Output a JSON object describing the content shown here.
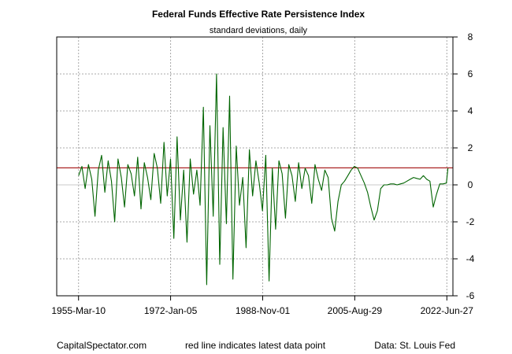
{
  "chart_data": {
    "type": "line",
    "title": "Federal Funds Effective Rate Persistence Index",
    "subtitle": "standard deviations, daily",
    "x_tick_labels": [
      "1955-Mar-10",
      "1972-Jan-05",
      "1988-Nov-01",
      "2005-Aug-29",
      "2022-Jun-27"
    ],
    "x_tick_years": [
      1955.19,
      1972.01,
      1988.84,
      2005.66,
      2022.49
    ],
    "xlim": [
      1951.2,
      2023.6
    ],
    "y_ticks": [
      -6,
      -4,
      -2,
      0,
      2,
      4,
      6,
      8
    ],
    "ylim": [
      -6,
      8
    ],
    "y_axis_side": "right",
    "grid": true,
    "reference_lines": [
      {
        "value": 0,
        "color": "#c8c8c8"
      },
      {
        "value": 0.92,
        "color": "#aa2222"
      }
    ],
    "series": [
      {
        "color": "#006400",
        "x": [
          1955.2,
          1955.8,
          1956.4,
          1957.0,
          1957.6,
          1958.2,
          1958.8,
          1959.4,
          1960.0,
          1960.6,
          1961.2,
          1961.8,
          1962.4,
          1963.0,
          1963.6,
          1964.2,
          1964.8,
          1965.4,
          1966.0,
          1966.6,
          1967.2,
          1967.8,
          1968.4,
          1969.0,
          1969.6,
          1970.2,
          1970.8,
          1971.4,
          1972.0,
          1972.6,
          1973.2,
          1973.8,
          1974.4,
          1975.0,
          1975.6,
          1976.2,
          1976.8,
          1977.4,
          1978.0,
          1978.6,
          1979.2,
          1979.8,
          1980.4,
          1981.0,
          1981.6,
          1982.2,
          1982.8,
          1983.4,
          1984.0,
          1984.6,
          1985.2,
          1985.8,
          1986.4,
          1987.0,
          1987.6,
          1988.2,
          1988.8,
          1989.4,
          1990.0,
          1990.6,
          1991.2,
          1991.8,
          1992.4,
          1993.0,
          1993.6,
          1994.2,
          1994.8,
          1995.4,
          1996.0,
          1996.6,
          1997.2,
          1997.8,
          1998.4,
          1999.0,
          1999.6,
          2000.2,
          2000.8,
          2001.4,
          2002.0,
          2002.6,
          2003.2,
          2003.8,
          2004.4,
          2005.0,
          2005.6,
          2006.2,
          2006.8,
          2007.4,
          2008.0,
          2008.6,
          2009.2,
          2009.8,
          2010.4,
          2011.0,
          2011.6,
          2012.2,
          2012.8,
          2013.4,
          2014.0,
          2014.6,
          2015.2,
          2015.8,
          2016.4,
          2017.0,
          2017.6,
          2018.2,
          2018.8,
          2019.4,
          2020.0,
          2020.6,
          2021.2,
          2021.8,
          2022.4,
          2022.7
        ],
        "y": [
          0.5,
          1.0,
          -0.2,
          1.1,
          0.3,
          -1.7,
          0.8,
          1.6,
          -0.4,
          1.3,
          0.2,
          -2.0,
          1.4,
          0.4,
          -1.2,
          1.1,
          0.6,
          -0.6,
          1.5,
          -1.3,
          1.2,
          0.4,
          -0.8,
          1.7,
          0.9,
          -1.0,
          2.3,
          -0.6,
          1.4,
          -2.9,
          2.6,
          -1.9,
          0.8,
          -3.1,
          1.4,
          -0.5,
          0.8,
          -1.1,
          4.2,
          -5.4,
          3.2,
          -1.7,
          6.0,
          -4.3,
          3.1,
          -2.1,
          4.8,
          -5.1,
          2.1,
          -1.1,
          0.4,
          -3.4,
          1.9,
          -0.6,
          1.3,
          0.1,
          -1.4,
          1.6,
          -5.2,
          0.9,
          -2.4,
          1.3,
          0.6,
          -1.8,
          1.1,
          0.5,
          -0.9,
          1.2,
          -0.2,
          0.9,
          0.5,
          -1.0,
          1.1,
          0.3,
          -0.3,
          0.8,
          0.4,
          -1.8,
          -2.5,
          -0.9,
          0.0,
          0.2,
          0.5,
          0.8,
          1.0,
          0.9,
          0.5,
          0.1,
          -0.4,
          -1.2,
          -1.9,
          -1.4,
          -0.2,
          0.0,
          0.0,
          0.05,
          0.05,
          0.0,
          0.05,
          0.1,
          0.2,
          0.3,
          0.4,
          0.35,
          0.3,
          0.5,
          0.3,
          0.2,
          -1.2,
          -0.5,
          0.05,
          0.05,
          0.1,
          0.9
        ]
      }
    ]
  },
  "footer": {
    "left": "CapitalSpectator.com",
    "center": "red line indicates latest data point",
    "right": "Data: St. Louis Fed"
  }
}
